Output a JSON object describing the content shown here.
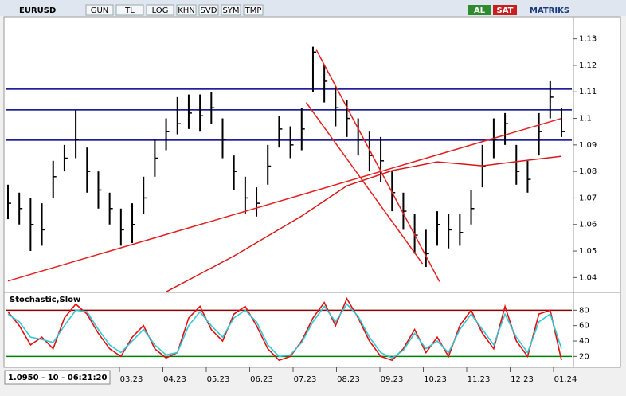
{
  "toolbar": {
    "symbol": "EURUSD",
    "buttons": [
      "GUN",
      "TL",
      "LOG",
      "KHN",
      "SVD",
      "SYM",
      "TMP"
    ],
    "buy": "AL",
    "sell": "SAT",
    "brand": "MATRIKS"
  },
  "status": "1.0950 - 10 - 06:21:20",
  "chart_data": [
    {
      "type": "ohlc",
      "color": "#000000",
      "ylim": [
        1.035,
        1.138
      ],
      "yticks": [
        1.04,
        1.05,
        1.06,
        1.07,
        1.08,
        1.09,
        1.1,
        1.11,
        1.12,
        1.13
      ],
      "close": [
        1.068,
        1.066,
        1.06,
        1.058,
        1.078,
        1.085,
        1.092,
        1.08,
        1.073,
        1.066,
        1.058,
        1.06,
        1.07,
        1.085,
        1.095,
        1.098,
        1.102,
        1.101,
        1.104,
        1.092,
        1.08,
        1.07,
        1.068,
        1.082,
        1.096,
        1.09,
        1.096,
        1.125,
        1.114,
        1.104,
        1.1,
        1.092,
        1.086,
        1.084,
        1.072,
        1.065,
        1.056,
        1.049,
        1.06,
        1.058,
        1.057,
        1.066,
        1.082,
        1.092,
        1.098,
        1.08,
        1.077,
        1.095,
        1.108,
        1.095
      ],
      "high": [
        1.075,
        1.072,
        1.07,
        1.068,
        1.084,
        1.09,
        1.103,
        1.089,
        1.08,
        1.072,
        1.066,
        1.068,
        1.078,
        1.092,
        1.1,
        1.108,
        1.109,
        1.109,
        1.11,
        1.1,
        1.086,
        1.078,
        1.074,
        1.09,
        1.101,
        1.097,
        1.104,
        1.127,
        1.12,
        1.112,
        1.107,
        1.1,
        1.095,
        1.093,
        1.08,
        1.072,
        1.064,
        1.058,
        1.065,
        1.064,
        1.064,
        1.073,
        1.09,
        1.1,
        1.102,
        1.09,
        1.084,
        1.102,
        1.114,
        1.104
      ],
      "low": [
        1.062,
        1.06,
        1.05,
        1.052,
        1.07,
        1.08,
        1.085,
        1.072,
        1.066,
        1.06,
        1.052,
        1.053,
        1.064,
        1.078,
        1.088,
        1.094,
        1.096,
        1.095,
        1.098,
        1.085,
        1.073,
        1.064,
        1.063,
        1.075,
        1.089,
        1.085,
        1.088,
        1.11,
        1.106,
        1.097,
        1.093,
        1.086,
        1.08,
        1.076,
        1.065,
        1.058,
        1.049,
        1.044,
        1.052,
        1.051,
        1.052,
        1.06,
        1.074,
        1.085,
        1.09,
        1.075,
        1.072,
        1.086,
        1.1,
        1.093
      ],
      "hlines": [
        {
          "value": 1.111,
          "color": "#00008b"
        },
        {
          "value": 1.1032,
          "color": "#00008b"
        },
        {
          "value": 1.0918,
          "color": "#00008b"
        }
      ],
      "trendlines": [
        {
          "x": [
            0,
            49
          ],
          "values": [
            1.0387,
            1.1
          ],
          "color": "#e32020"
        },
        {
          "x": [
            27.3,
            38.2
          ],
          "values": [
            1.1258,
            1.0385
          ],
          "color": "#e32020"
        },
        {
          "x": [
            26.4,
            36.7
          ],
          "values": [
            1.106,
            1.0452
          ],
          "color": "#e32020"
        },
        {
          "x": [
            14,
            20,
            26,
            30,
            34,
            38,
            42,
            46,
            49
          ],
          "values": [
            1.0346,
            1.0481,
            1.0632,
            1.0746,
            1.0803,
            1.0836,
            1.0821,
            1.0842,
            1.0857
          ],
          "color": "#d81818"
        }
      ]
    },
    {
      "type": "line",
      "title": "Stochastic,Slow",
      "ylim": [
        9,
        100
      ],
      "yticks": [
        20,
        40,
        60,
        80
      ],
      "levels": [
        {
          "value": 80,
          "color": "#8b0000"
        },
        {
          "value": 20,
          "color": "#008000"
        }
      ],
      "series": [
        {
          "color": "#e01010",
          "values": [
            78,
            60,
            35,
            45,
            30,
            70,
            88,
            75,
            50,
            30,
            20,
            45,
            60,
            30,
            18,
            25,
            70,
            85,
            55,
            40,
            75,
            85,
            60,
            30,
            15,
            20,
            40,
            70,
            90,
            60,
            95,
            70,
            40,
            20,
            15,
            30,
            55,
            25,
            45,
            20,
            60,
            80,
            50,
            30,
            85,
            40,
            20,
            75,
            80,
            15
          ]
        },
        {
          "color": "#30c8d8",
          "values": [
            75,
            65,
            45,
            42,
            38,
            60,
            80,
            78,
            55,
            35,
            25,
            40,
            55,
            35,
            22,
            25,
            60,
            78,
            60,
            45,
            70,
            80,
            65,
            35,
            20,
            22,
            38,
            65,
            85,
            65,
            88,
            72,
            45,
            25,
            18,
            28,
            50,
            30,
            40,
            25,
            55,
            75,
            55,
            35,
            75,
            45,
            25,
            65,
            75,
            30
          ]
        }
      ],
      "x_labels": [
        "03.23",
        "04.23",
        "05.23",
        "06.23",
        "07.23",
        "08.23",
        "09.23",
        "10.23",
        "11.23",
        "12.23",
        "01.24"
      ]
    }
  ]
}
